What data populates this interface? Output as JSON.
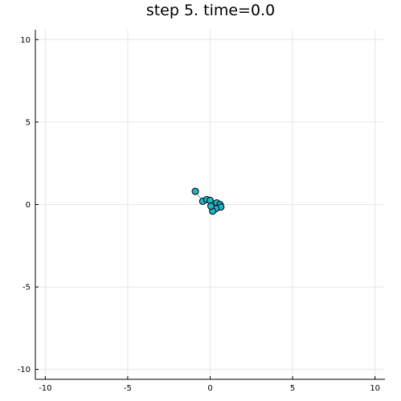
{
  "chart_data": {
    "type": "scatter",
    "title": "step 5. time=0.0",
    "xlabel": "",
    "ylabel": "",
    "xlim": [
      -10.6,
      10.6
    ],
    "ylim": [
      -10.6,
      10.6
    ],
    "xticks": [
      -10,
      -5,
      0,
      5,
      10
    ],
    "yticks": [
      -10,
      -5,
      0,
      5,
      10
    ],
    "xtick_labels": [
      "-10",
      "-5",
      "0",
      "5",
      "10"
    ],
    "ytick_labels": [
      "-10",
      "-5",
      "0",
      "5",
      "10"
    ],
    "grid": true,
    "legend": "none",
    "marker_color": "#1fb3c8",
    "path_color": "#2e9fb5",
    "points": [
      {
        "x": -0.9,
        "y": 0.8
      },
      {
        "x": -0.45,
        "y": 0.2
      },
      {
        "x": -0.2,
        "y": 0.3
      },
      {
        "x": 0.0,
        "y": 0.25
      },
      {
        "x": 0.4,
        "y": 0.1
      },
      {
        "x": 0.6,
        "y": 0.0
      },
      {
        "x": 0.65,
        "y": -0.15
      },
      {
        "x": 0.35,
        "y": -0.25
      },
      {
        "x": 0.15,
        "y": -0.4
      },
      {
        "x": 0.05,
        "y": -0.1
      }
    ]
  }
}
